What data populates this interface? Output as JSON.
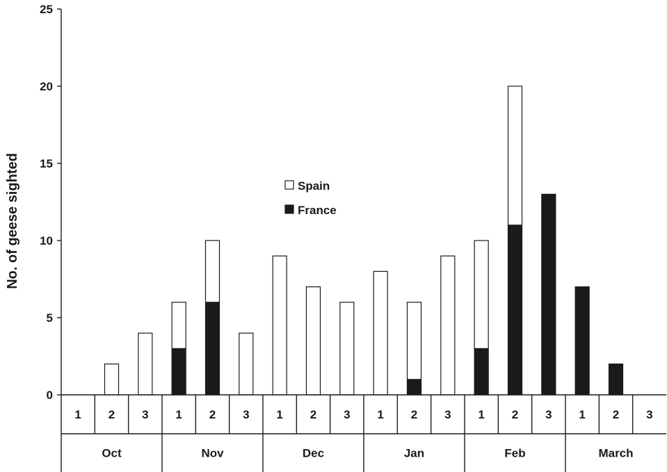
{
  "chart_data": {
    "type": "bar",
    "stacked": true,
    "title": "",
    "ylabel": "No. of geese sighted",
    "xlabel": "",
    "ylim": [
      0,
      25
    ],
    "yticks": [
      0,
      5,
      10,
      15,
      20,
      25
    ],
    "grid": false,
    "legend_position": "center",
    "months": [
      "Oct",
      "Nov",
      "Dec",
      "Jan",
      "Feb",
      "March"
    ],
    "periods": [
      "1",
      "2",
      "3"
    ],
    "categories": [
      "Oct 1",
      "Oct 2",
      "Oct 3",
      "Nov 1",
      "Nov 2",
      "Nov 3",
      "Dec 1",
      "Dec 2",
      "Dec 3",
      "Jan 1",
      "Jan 2",
      "Jan 3",
      "Feb 1",
      "Feb 2",
      "Feb 3",
      "March 1",
      "March 2",
      "March 3"
    ],
    "series": [
      {
        "name": "France",
        "color": "#1a1a1a",
        "values": [
          0,
          0,
          0,
          3,
          6,
          0,
          0,
          0,
          0,
          0,
          1,
          0,
          3,
          11,
          13,
          7,
          2,
          0
        ]
      },
      {
        "name": "Spain",
        "color": "#ffffff",
        "values": [
          0,
          2,
          4,
          3,
          4,
          4,
          9,
          7,
          6,
          8,
          5,
          9,
          7,
          9,
          0,
          0,
          0,
          0
        ]
      }
    ]
  }
}
